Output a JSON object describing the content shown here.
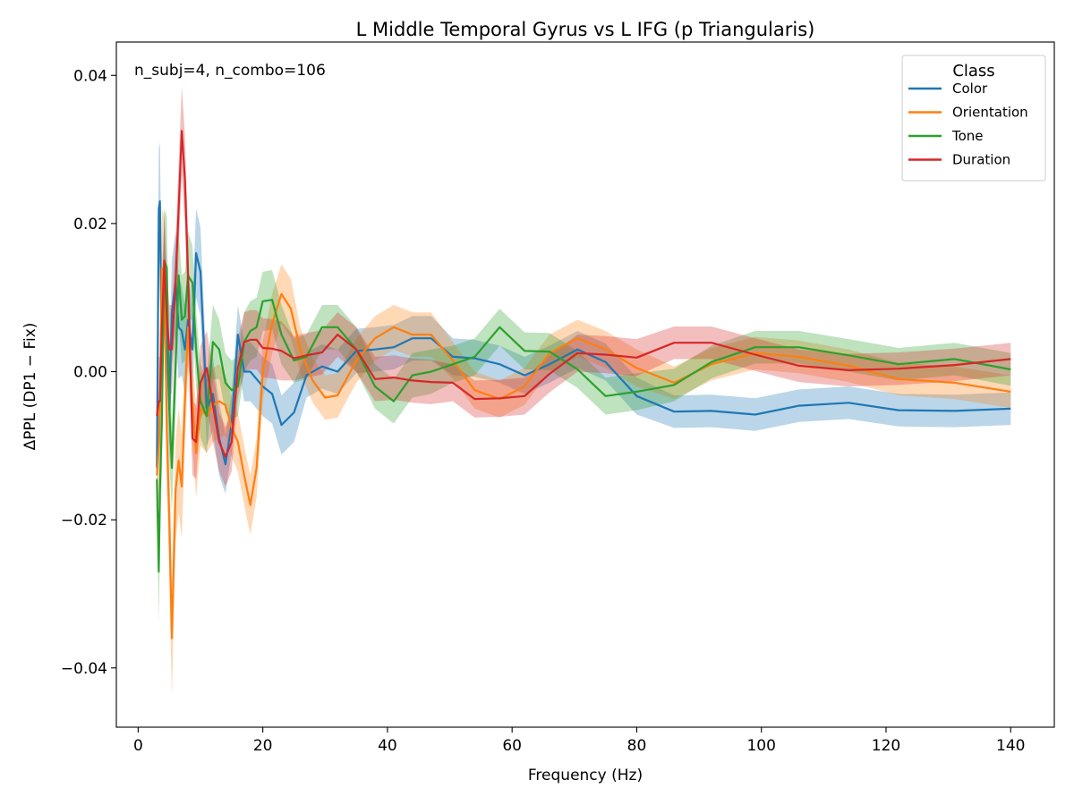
{
  "chart_data": {
    "type": "line",
    "title": "L Middle Temporal Gyrus vs L IFG (p Triangularis)",
    "xlabel": "Frequency (Hz)",
    "ylabel": "ΔPPL (DP1 − Fix)",
    "annotation": "n_subj=4, n_combo=106",
    "xlim": [
      -3.5,
      147
    ],
    "ylim": [
      -0.048,
      0.0445
    ],
    "xticks": [
      0,
      20,
      40,
      60,
      80,
      100,
      120,
      140
    ],
    "xtick_labels": [
      "0",
      "20",
      "40",
      "60",
      "80",
      "100",
      "120",
      "140"
    ],
    "yticks": [
      -0.04,
      -0.02,
      0.0,
      0.02,
      0.04
    ],
    "ytick_labels": [
      "−0.04",
      "−0.02",
      "0.00",
      "0.02",
      "0.04"
    ],
    "grid": false,
    "legend": {
      "title": "Class",
      "position": "upper right"
    },
    "shaded_band": "mean ± SEM",
    "series": [
      {
        "name": "Color",
        "color": "#1f77b4",
        "x": [
          3.0,
          3.3,
          3.5,
          3.8,
          4.2,
          4.6,
          5.0,
          5.4,
          6.0,
          6.5,
          7.0,
          7.5,
          8.0,
          8.7,
          9.3,
          10.0,
          11.0,
          12.0,
          13.0,
          14.0,
          15.0,
          16.0,
          17.0,
          18.0,
          19.0,
          20.0,
          21.5,
          23.0,
          25.0,
          27.0,
          29.5,
          32.0,
          35.0,
          38.0,
          41.0,
          44.0,
          47.0,
          50.5,
          54.0,
          58.0,
          62.0,
          66.0,
          70.5,
          75.0,
          80.0,
          86.0,
          92.0,
          99.0,
          106.0,
          114.0,
          122.0,
          131.0,
          140.0
        ],
        "y": [
          -0.013,
          0.022,
          0.023,
          0.001,
          0.014,
          0.004,
          -0.005,
          0.008,
          0.012,
          0.006,
          0.0055,
          0.003,
          0.007,
          0.003,
          0.016,
          0.0135,
          -0.005,
          -0.003,
          -0.009,
          -0.0125,
          -0.007,
          0.005,
          0.0,
          0.0,
          -0.001,
          -0.002,
          -0.003,
          -0.0072,
          -0.0055,
          -0.0005,
          0.0007,
          0.0,
          0.0028,
          0.003,
          0.0033,
          0.0045,
          0.0045,
          0.002,
          0.0018,
          0.001,
          -0.0005,
          0.001,
          0.003,
          0.0013,
          -0.0033,
          -0.0054,
          -0.0053,
          -0.0058,
          -0.0046,
          -0.0042,
          -0.0052,
          -0.0053,
          -0.005
        ],
        "err": [
          0.003,
          0.008,
          0.008,
          0.008,
          0.008,
          0.008,
          0.007,
          0.007,
          0.007,
          0.007,
          0.006,
          0.006,
          0.006,
          0.006,
          0.006,
          0.006,
          0.005,
          0.005,
          0.005,
          0.004,
          0.004,
          0.004,
          0.004,
          0.004,
          0.004,
          0.004,
          0.004,
          0.004,
          0.004,
          0.003,
          0.003,
          0.003,
          0.003,
          0.003,
          0.003,
          0.003,
          0.003,
          0.0025,
          0.0025,
          0.0025,
          0.0025,
          0.0025,
          0.0025,
          0.0025,
          0.0025,
          0.0022,
          0.0022,
          0.0022,
          0.0022,
          0.0022,
          0.0022,
          0.0022,
          0.0022
        ]
      },
      {
        "name": "Orientation",
        "color": "#ff7f0e",
        "x": [
          3.0,
          3.3,
          3.5,
          3.8,
          4.2,
          4.6,
          5.0,
          5.4,
          6.0,
          6.5,
          7.0,
          7.5,
          8.0,
          8.7,
          9.3,
          10.0,
          11.0,
          12.0,
          13.0,
          14.0,
          15.0,
          16.0,
          17.0,
          18.0,
          19.0,
          20.0,
          21.5,
          23.0,
          24.5,
          26.0,
          28.0,
          30.0,
          32.0,
          35.0,
          38.0,
          41.0,
          44.0,
          47.0,
          50.5,
          54.0,
          58.0,
          62.0,
          66.0,
          70.5,
          75.0,
          80.0,
          86.0,
          92.0,
          99.0,
          106.0,
          114.0,
          122.0,
          131.0,
          140.0
        ],
        "y": [
          -0.014,
          -0.01,
          -0.005,
          0.014,
          0.013,
          -0.008,
          -0.02,
          -0.036,
          -0.016,
          -0.012,
          -0.0155,
          -0.004,
          0.006,
          -0.004,
          -0.011,
          -0.005,
          -0.006,
          -0.0045,
          -0.004,
          -0.0045,
          -0.0075,
          -0.0095,
          -0.014,
          -0.018,
          -0.013,
          0.0,
          0.0065,
          0.0105,
          0.0085,
          0.003,
          -0.0012,
          -0.0035,
          -0.0032,
          0.0015,
          0.0045,
          0.006,
          0.005,
          0.005,
          0.0015,
          -0.0025,
          -0.0037,
          -0.002,
          0.0025,
          0.0045,
          0.003,
          0.0005,
          -0.0015,
          0.001,
          0.0025,
          0.002,
          0.0008,
          -0.001,
          -0.0015,
          -0.0027
        ],
        "err": [
          0.005,
          0.008,
          0.008,
          0.008,
          0.008,
          0.008,
          0.008,
          0.008,
          0.007,
          0.007,
          0.007,
          0.006,
          0.006,
          0.006,
          0.006,
          0.005,
          0.005,
          0.005,
          0.005,
          0.004,
          0.004,
          0.004,
          0.004,
          0.004,
          0.004,
          0.004,
          0.004,
          0.004,
          0.004,
          0.003,
          0.003,
          0.003,
          0.003,
          0.003,
          0.003,
          0.003,
          0.003,
          0.003,
          0.0025,
          0.0025,
          0.0025,
          0.0025,
          0.0025,
          0.0025,
          0.0025,
          0.0025,
          0.0022,
          0.0022,
          0.0022,
          0.0022,
          0.0022,
          0.0022,
          0.0022,
          0.0022
        ]
      },
      {
        "name": "Tone",
        "color": "#2ca02c",
        "x": [
          3.0,
          3.3,
          3.5,
          3.8,
          4.2,
          4.6,
          5.0,
          5.4,
          6.0,
          6.5,
          7.0,
          7.5,
          8.0,
          8.7,
          9.3,
          10.0,
          11.0,
          12.0,
          13.0,
          14.0,
          15.0,
          16.0,
          17.0,
          18.0,
          19.0,
          20.0,
          21.5,
          23.0,
          25.0,
          27.0,
          29.5,
          32.0,
          35.0,
          38.0,
          41.0,
          44.0,
          47.0,
          50.5,
          54.0,
          58.0,
          62.0,
          66.0,
          70.5,
          75.0,
          80.0,
          86.0,
          92.0,
          99.0,
          106.0,
          114.0,
          122.0,
          131.0,
          140.0
        ],
        "y": [
          -0.0145,
          -0.027,
          -0.016,
          -0.007,
          0.015,
          0.014,
          -0.005,
          -0.013,
          0.001,
          0.013,
          0.007,
          0.0075,
          0.013,
          0.012,
          0.003,
          -0.004,
          -0.006,
          0.004,
          0.003,
          -0.0015,
          -0.0025,
          -0.002,
          0.004,
          0.0055,
          0.006,
          0.0095,
          0.0097,
          0.005,
          0.0015,
          0.002,
          0.006,
          0.006,
          0.003,
          -0.002,
          -0.004,
          -0.0005,
          0.0,
          0.001,
          0.002,
          0.006,
          0.0028,
          0.0027,
          0.0003,
          -0.0033,
          -0.0027,
          -0.0018,
          0.0013,
          0.0033,
          0.0033,
          0.0022,
          0.001,
          0.0017,
          0.0003
        ],
        "err": [
          0.004,
          0.007,
          0.007,
          0.007,
          0.007,
          0.007,
          0.007,
          0.006,
          0.006,
          0.006,
          0.006,
          0.006,
          0.006,
          0.005,
          0.005,
          0.005,
          0.005,
          0.005,
          0.004,
          0.004,
          0.004,
          0.004,
          0.004,
          0.004,
          0.004,
          0.004,
          0.004,
          0.004,
          0.003,
          0.003,
          0.003,
          0.003,
          0.003,
          0.003,
          0.003,
          0.003,
          0.003,
          0.0025,
          0.0025,
          0.0025,
          0.0025,
          0.0025,
          0.0025,
          0.0025,
          0.0025,
          0.0022,
          0.0022,
          0.0022,
          0.0022,
          0.0022,
          0.0022,
          0.0022,
          0.0022
        ]
      },
      {
        "name": "Duration",
        "color": "#d62728",
        "x": [
          3.0,
          3.3,
          3.5,
          3.8,
          4.2,
          4.6,
          5.0,
          5.4,
          6.0,
          6.5,
          7.0,
          7.5,
          8.0,
          8.7,
          9.3,
          10.0,
          11.0,
          12.0,
          13.0,
          14.0,
          15.0,
          16.0,
          17.0,
          18.0,
          19.0,
          20.0,
          21.5,
          23.0,
          25.0,
          27.0,
          29.5,
          32.0,
          35.0,
          38.0,
          41.0,
          44.0,
          47.0,
          50.5,
          54.0,
          58.0,
          62.0,
          66.0,
          70.5,
          75.0,
          80.0,
          86.0,
          92.0,
          99.0,
          106.0,
          114.0,
          122.0,
          131.0,
          140.0
        ],
        "y": [
          -0.006,
          -0.004,
          -0.004,
          0.006,
          0.015,
          0.007,
          0.003,
          0.003,
          0.012,
          0.022,
          0.0325,
          0.026,
          0.013,
          -0.009,
          -0.0095,
          -0.0015,
          0.0005,
          -0.0045,
          -0.0095,
          -0.0115,
          -0.0095,
          0.0005,
          0.004,
          0.0043,
          0.0043,
          0.0032,
          0.0031,
          0.0028,
          0.0018,
          0.0022,
          0.0026,
          0.005,
          0.003,
          -0.001,
          -0.0008,
          -0.0012,
          -0.0014,
          -0.0015,
          -0.0037,
          -0.0036,
          -0.0033,
          -0.0003,
          0.0025,
          0.0023,
          0.0019,
          0.0039,
          0.0039,
          0.0023,
          0.0008,
          0.0002,
          0.0004,
          0.0009,
          0.0017
        ],
        "err": [
          0.004,
          0.006,
          0.006,
          0.006,
          0.006,
          0.006,
          0.006,
          0.006,
          0.006,
          0.006,
          0.006,
          0.006,
          0.006,
          0.005,
          0.005,
          0.005,
          0.005,
          0.005,
          0.004,
          0.004,
          0.004,
          0.004,
          0.004,
          0.004,
          0.004,
          0.004,
          0.004,
          0.004,
          0.003,
          0.003,
          0.003,
          0.003,
          0.003,
          0.003,
          0.003,
          0.003,
          0.003,
          0.0025,
          0.0025,
          0.0025,
          0.0025,
          0.0025,
          0.0025,
          0.0025,
          0.0025,
          0.0022,
          0.0022,
          0.0022,
          0.0022,
          0.0022,
          0.0022,
          0.0022,
          0.0022
        ]
      }
    ]
  }
}
